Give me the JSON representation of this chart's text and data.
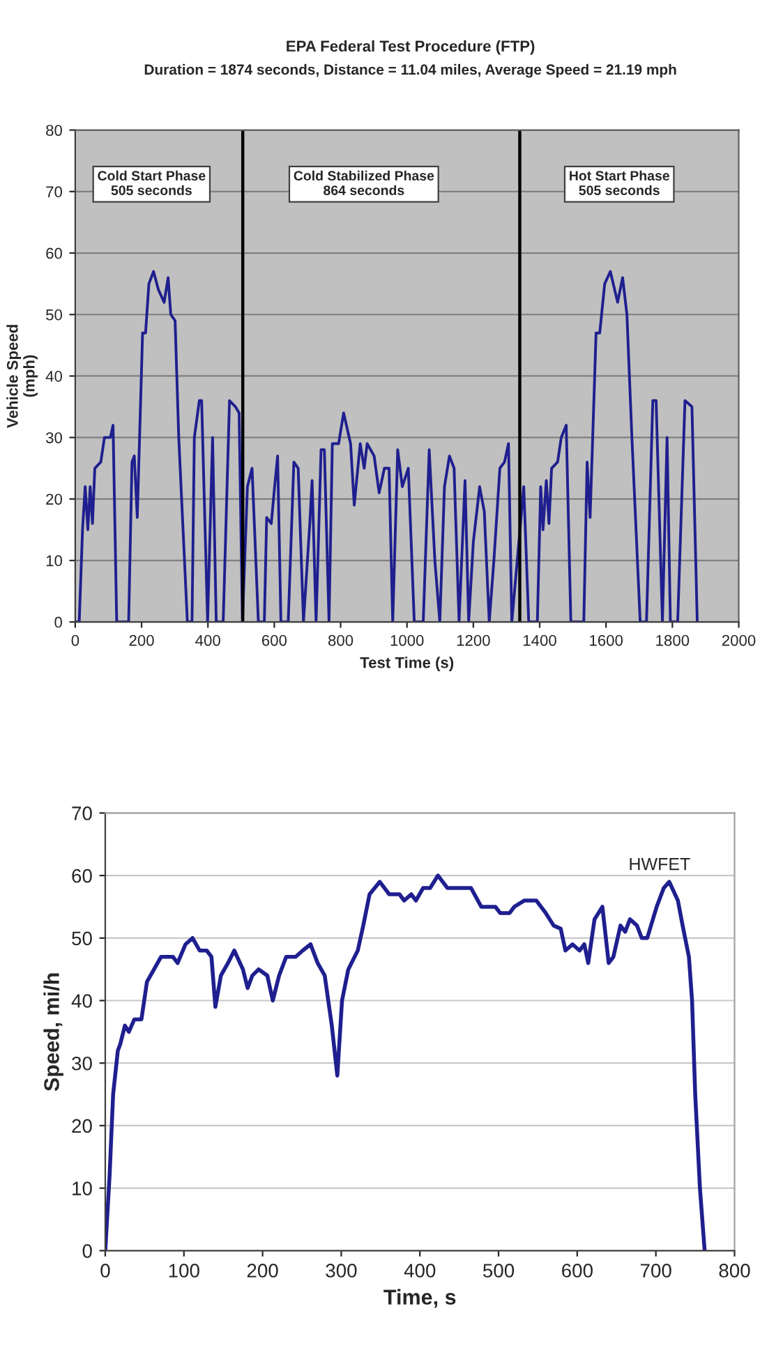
{
  "chart_data": [
    {
      "type": "line",
      "title": "EPA Federal Test Procedure (FTP)",
      "subtitle": "Duration = 1874 seconds, Distance = 11.04 miles, Average Speed = 21.19 mph",
      "xlabel": "Test Time (s)",
      "ylabel": "Vehicle Speed\n(mph)",
      "xlim": [
        0,
        2000
      ],
      "xticks": [
        0,
        200,
        400,
        600,
        800,
        1000,
        1200,
        1400,
        1600,
        1800,
        2000
      ],
      "ylim": [
        0,
        80
      ],
      "yticks": [
        0,
        10,
        20,
        30,
        40,
        50,
        60,
        70,
        80
      ],
      "grid": "y",
      "legend": false,
      "marker": "none",
      "line_style": "solid",
      "ref_lines": [
        {
          "axis": "x",
          "value": 505,
          "color": "#000000"
        },
        {
          "axis": "x",
          "value": 1340,
          "color": "#000000"
        }
      ],
      "annotations": [
        "Cold Start Phase\n505 seconds",
        "Cold Stabilized Phase\n864 seconds",
        "Hot Start Phase\n505 seconds"
      ],
      "series": [
        {
          "color": "#1f1f8f",
          "x": [
            0,
            12,
            22,
            30,
            38,
            45,
            52,
            59,
            77,
            88,
            106,
            114,
            125,
            161,
            171,
            178,
            187,
            203,
            212,
            222,
            236,
            251,
            268,
            280,
            288,
            301,
            312,
            338,
            352,
            359,
            374,
            381,
            399,
            414,
            425,
            446,
            465,
            483,
            494,
            504,
            519,
            533,
            552,
            570,
            577,
            591,
            601,
            610,
            620,
            642,
            659,
            672,
            688,
            707,
            714,
            726,
            741,
            751,
            765,
            775,
            794,
            809,
            830,
            841,
            859,
            871,
            880,
            901,
            916,
            932,
            946,
            957,
            972,
            986,
            1004,
            1022,
            1049,
            1067,
            1084,
            1099,
            1113,
            1128,
            1142,
            1157,
            1175,
            1186,
            1200,
            1219,
            1233,
            1248,
            1262,
            1280,
            1294,
            1306,
            1316,
            1352,
            1367,
            1393,
            1403,
            1410,
            1420,
            1428,
            1436,
            1454,
            1465,
            1480,
            1494,
            1533,
            1543,
            1552,
            1570,
            1581,
            1596,
            1613,
            1635,
            1650,
            1663,
            1678,
            1703,
            1722,
            1741,
            1751,
            1770,
            1784,
            1794,
            1816,
            1838,
            1859,
            1875
          ],
          "values": [
            0,
            0,
            15,
            22,
            15,
            22,
            16,
            25,
            26,
            30,
            30,
            32,
            0,
            0,
            26,
            27,
            17,
            47,
            47,
            55,
            57,
            54,
            52,
            56,
            50,
            49,
            30,
            0,
            0,
            30,
            36,
            36,
            0,
            30,
            0,
            0,
            36,
            35,
            34,
            0,
            22,
            25,
            0,
            0,
            17,
            16,
            22,
            27,
            0,
            0,
            26,
            25,
            0,
            16,
            23,
            0,
            28,
            28,
            0,
            29,
            29,
            34,
            29,
            19,
            29,
            25,
            29,
            27,
            21,
            25,
            25,
            0,
            28,
            22,
            25,
            0,
            0,
            28,
            10,
            0,
            22,
            27,
            25,
            0,
            23,
            0,
            13,
            22,
            18,
            0,
            10,
            25,
            26,
            29,
            0,
            22,
            0,
            0,
            22,
            15,
            23,
            16,
            25,
            26,
            30,
            32,
            0,
            0,
            26,
            17,
            47,
            47,
            55,
            57,
            52,
            56,
            50,
            30,
            0,
            0,
            36,
            36,
            0,
            30,
            0,
            0,
            36,
            35,
            0
          ]
        }
      ]
    },
    {
      "type": "line",
      "xlabel": "Time, s",
      "ylabel": "Speed, mi/h",
      "xlim": [
        0,
        800
      ],
      "xticks": [
        0,
        100,
        200,
        300,
        400,
        500,
        600,
        700,
        800
      ],
      "ylim": [
        0,
        70
      ],
      "yticks": [
        0,
        10,
        20,
        30,
        40,
        50,
        60,
        70
      ],
      "grid": "y",
      "legend": false,
      "marker": "none",
      "line_style": "solid",
      "annotations": [
        "HWFET"
      ],
      "series": [
        {
          "color": "#1f1f8f",
          "x": [
            0,
            5.5,
            10,
            16,
            19,
            25,
            30,
            37,
            46,
            53,
            62,
            71,
            77,
            86,
            92,
            102,
            111,
            120,
            129,
            135,
            140,
            147,
            156,
            164,
            175,
            181,
            187,
            195,
            206,
            213,
            221,
            230,
            242,
            251,
            261,
            270,
            279,
            288,
            295,
            301,
            309,
            321,
            328,
            336,
            349,
            361,
            374,
            380,
            389,
            395,
            404,
            413,
            423,
            435,
            453,
            465,
            478,
            496,
            502,
            514,
            520,
            533,
            548,
            560,
            570,
            579,
            585,
            594,
            603,
            609,
            614,
            622,
            632,
            640,
            646,
            655,
            661,
            667,
            676,
            682,
            689,
            701,
            710,
            717,
            728,
            734,
            742,
            746,
            750,
            756,
            762
          ],
          "values": [
            0,
            12,
            25,
            32,
            33,
            36,
            35,
            37,
            37,
            43,
            45,
            47,
            47,
            47,
            46,
            49,
            50,
            48,
            48,
            47,
            39,
            44,
            46,
            48,
            45,
            42,
            44,
            45,
            44,
            40,
            44,
            47,
            47,
            48,
            49,
            46,
            44,
            36,
            28,
            40,
            45,
            48,
            52,
            57,
            59,
            57,
            57,
            56,
            57,
            56,
            58,
            58,
            60,
            58,
            58,
            58,
            55,
            55,
            54,
            54,
            55,
            56,
            56,
            54,
            52,
            51.5,
            48,
            49,
            48,
            49,
            46,
            53,
            55,
            46,
            47,
            52,
            51,
            53,
            52,
            50,
            50,
            55,
            58,
            59,
            56,
            52,
            47,
            40,
            25,
            10,
            0
          ]
        }
      ]
    }
  ]
}
